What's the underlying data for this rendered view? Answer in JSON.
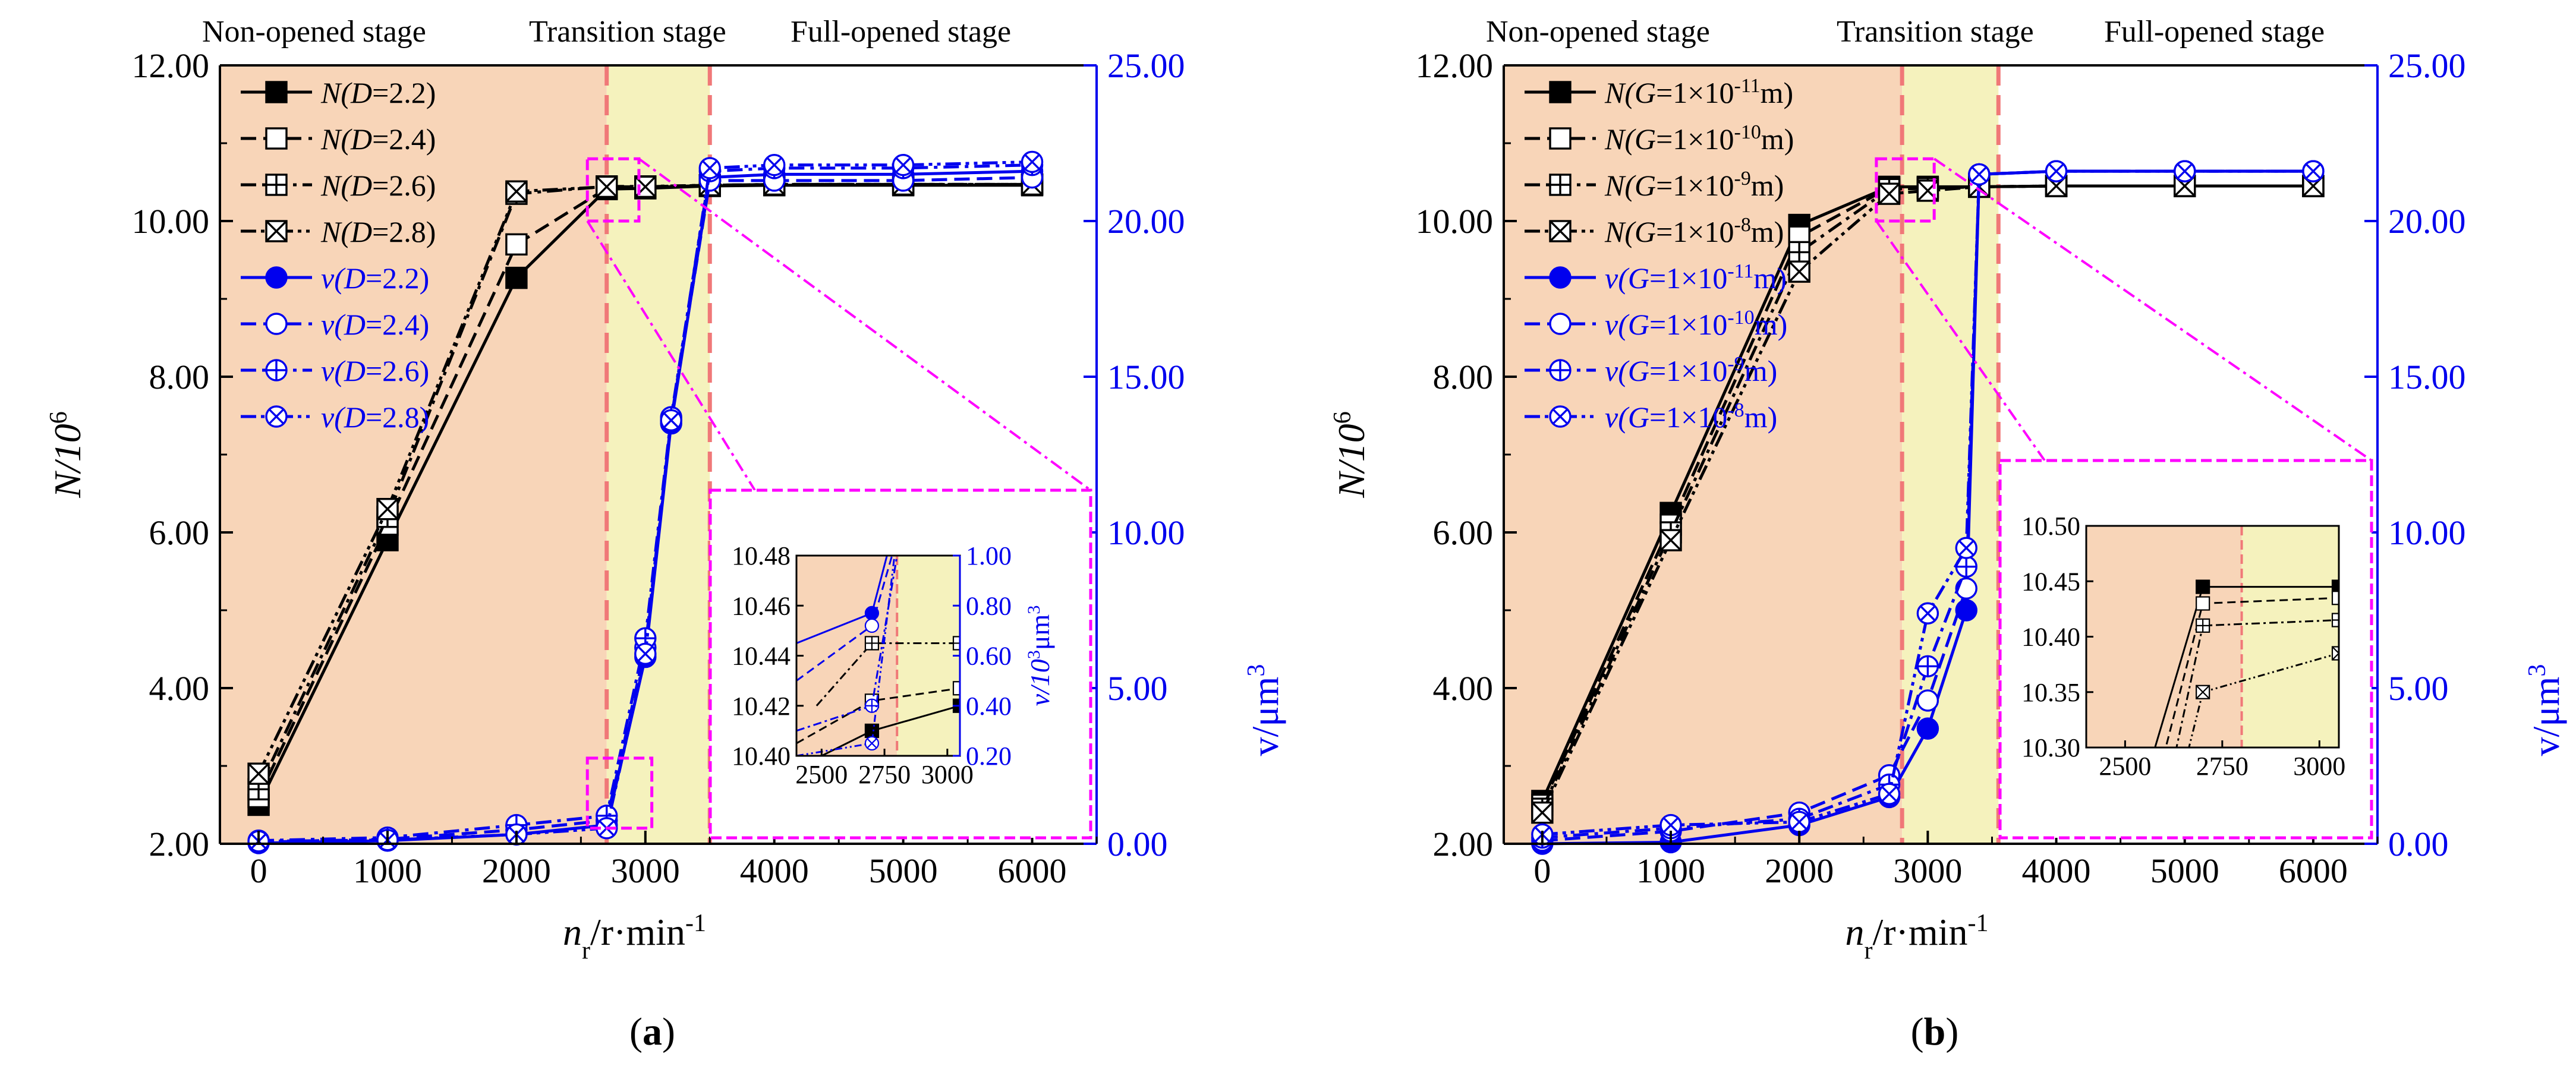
{
  "figure": {
    "panels": [
      {
        "label": "(a)",
        "label_open": "(",
        "label_letter": "a",
        "label_close": ")",
        "stages": [
          "Non-opened stage",
          "Transition stage",
          "Full-opened stage"
        ],
        "y_ticks": [
          "2.00",
          "4.00",
          "6.00",
          "8.00",
          "10.00",
          "12.00"
        ],
        "y2_ticks": [
          "0.00",
          "5.00",
          "10.00",
          "15.00",
          "20.00",
          "25.00"
        ],
        "x_ticks": [
          "0",
          "1000",
          "2000",
          "3000",
          "4000",
          "5000",
          "6000"
        ],
        "inset_x_ticks": [
          "2500",
          "2750",
          "3000"
        ],
        "inset_y_ticks": [
          "10.40",
          "10.42",
          "10.44",
          "10.46",
          "10.48"
        ],
        "inset_y2_ticks": [
          "0.20",
          "0.40",
          "0.60",
          "0.80",
          "1.00"
        ],
        "legend": [
          {
            "pre": "N(",
            "var": "D",
            "sup": "",
            "post": "=2.2)"
          },
          {
            "pre": "N(",
            "var": "D",
            "sup": "",
            "post": "=2.4)"
          },
          {
            "pre": "N(",
            "var": "D",
            "sup": "",
            "post": "=2.6)"
          },
          {
            "pre": "N(",
            "var": "D",
            "sup": "",
            "post": "=2.8)"
          },
          {
            "pre": "v(",
            "var": "D",
            "sup": "",
            "post": "=2.2)"
          },
          {
            "pre": "v(",
            "var": "D",
            "sup": "",
            "post": "=2.4)"
          },
          {
            "pre": "v(",
            "var": "D",
            "sup": "",
            "post": "=2.6)"
          },
          {
            "pre": "v(",
            "var": "D",
            "sup": "",
            "post": "=2.8)"
          }
        ]
      },
      {
        "label": "(b)",
        "label_open": "(",
        "label_letter": "b",
        "label_close": ")",
        "stages": [
          "Non-opened stage",
          "Transition stage",
          "Full-opened stage"
        ],
        "y_ticks": [
          "2.00",
          "4.00",
          "6.00",
          "8.00",
          "10.00",
          "12.00"
        ],
        "y2_ticks": [
          "0.00",
          "5.00",
          "10.00",
          "15.00",
          "20.00",
          "25.00"
        ],
        "x_ticks": [
          "0",
          "1000",
          "2000",
          "3000",
          "4000",
          "5000",
          "6000"
        ],
        "inset_x_ticks": [
          "2500",
          "2750",
          "3000"
        ],
        "inset_y_ticks": [
          "10.30",
          "10.35",
          "10.40",
          "10.45",
          "10.50"
        ],
        "legend": [
          {
            "pre": "N(",
            "var": "G",
            "sup": "-11",
            "post": "=1×10",
            "tail": "m)"
          },
          {
            "pre": "N(",
            "var": "G",
            "sup": "-10",
            "post": "=1×10",
            "tail": "m)"
          },
          {
            "pre": "N(",
            "var": "G",
            "sup": "-9",
            "post": "=1×10",
            "tail": "m)"
          },
          {
            "pre": "N(",
            "var": "G",
            "sup": "-8",
            "post": "=1×10",
            "tail": "m)"
          },
          {
            "pre": "v(",
            "var": "G",
            "sup": "-11",
            "post": "=1×10",
            "tail": "m)"
          },
          {
            "pre": "v(",
            "var": "G",
            "sup": "-10",
            "post": "=1×10",
            "tail": "m)"
          },
          {
            "pre": "v(",
            "var": "G",
            "sup": "-9",
            "post": "=1×10",
            "tail": "m)"
          },
          {
            "pre": "v(",
            "var": "G",
            "sup": "-8",
            "post": "=1×10",
            "tail": "m)"
          }
        ]
      }
    ],
    "y_label": "N/10",
    "y_label_sup": "6",
    "y2_label": "v/μm",
    "y2_label_sup": "3",
    "x_label_n": "n",
    "x_label_sub": "r",
    "x_label_unit": "/r·min",
    "x_label_sup": "-1",
    "inset_y2_label": "v/10",
    "inset_y2_sup": "3",
    "inset_y2_unit": "μm",
    "inset_y2_unit_sup": "3"
  },
  "colors": {
    "black": "#000000",
    "blue": "#0000ee",
    "magenta": "#ff00ff",
    "stage1": "#f8d5b8",
    "stage2": "#f5f2bd",
    "stage_line": "#f07878"
  },
  "chart_data": [
    {
      "type": "line",
      "title": "(a)",
      "xlabel": "n_r/r·min^-1",
      "ylabel": "N/10^6",
      "y2label": "v/μm^3",
      "xlim": [
        -300,
        6500
      ],
      "ylim": [
        2,
        12
      ],
      "y2lim": [
        0,
        25
      ],
      "stage_bounds": [
        2700,
        3500
      ],
      "series": [
        {
          "name": "N(D=2.2)",
          "axis": "left",
          "color": "#000000",
          "dash": "solid",
          "marker": "filled_square",
          "x": [
            0,
            1000,
            2000,
            2700,
            3000,
            3500,
            4000,
            5000,
            6000
          ],
          "values": [
            2.5,
            5.9,
            9.27,
            10.41,
            10.42,
            10.45,
            10.46,
            10.46,
            10.46
          ]
        },
        {
          "name": "N(D=2.4)",
          "axis": "left",
          "color": "#000000",
          "dash": "dash",
          "marker": "open_square",
          "x": [
            0,
            1000,
            2000,
            2700,
            3000,
            3500,
            4000,
            5000,
            6000
          ],
          "values": [
            2.6,
            6.1,
            9.7,
            10.42,
            10.43,
            10.46,
            10.47,
            10.47,
            10.47
          ]
        },
        {
          "name": "N(D=2.6)",
          "axis": "left",
          "color": "#000000",
          "dash": "dashdot",
          "marker": "plus_square",
          "x": [
            0,
            1000,
            2000,
            2700,
            3000,
            3500,
            4000,
            5000,
            6000
          ],
          "values": [
            2.7,
            6.2,
            10.35,
            10.445,
            10.445,
            10.46,
            10.47,
            10.47,
            10.47
          ]
        },
        {
          "name": "N(D=2.8)",
          "axis": "left",
          "color": "#000000",
          "dash": "dashdotdot",
          "marker": "x_square",
          "x": [
            0,
            1000,
            2000,
            2700,
            3000,
            3500,
            4000,
            5000,
            6000
          ],
          "values": [
            2.9,
            6.3,
            10.38,
            10.44,
            10.44,
            10.46,
            10.47,
            10.47,
            10.47
          ]
        },
        {
          "name": "v(D=2.2)",
          "axis": "right",
          "color": "#0000ee",
          "dash": "solid",
          "marker": "filled_circle",
          "x": [
            0,
            1000,
            2000,
            2700,
            3000,
            3200,
            3500,
            4000,
            5000,
            6000
          ],
          "values": [
            0.02,
            0.1,
            0.3,
            0.6,
            6.0,
            13.5,
            21.4,
            21.5,
            21.5,
            21.6
          ]
        },
        {
          "name": "v(D=2.4)",
          "axis": "right",
          "color": "#0000ee",
          "dash": "dash",
          "marker": "open_circle",
          "x": [
            0,
            1000,
            2000,
            2700,
            3000,
            3200,
            3500,
            4000,
            5000,
            6000
          ],
          "values": [
            0.05,
            0.15,
            0.45,
            0.75,
            6.3,
            13.6,
            21.3,
            21.3,
            21.3,
            21.4
          ]
        },
        {
          "name": "v(D=2.6)",
          "axis": "right",
          "color": "#0000ee",
          "dash": "dashdot",
          "marker": "plus_circle",
          "x": [
            0,
            1000,
            2000,
            2700,
            3000,
            3200,
            3500,
            4000,
            5000,
            6000
          ],
          "values": [
            0.1,
            0.2,
            0.6,
            0.9,
            6.6,
            13.7,
            21.6,
            21.7,
            21.7,
            21.8
          ]
        },
        {
          "name": "v(D=2.8)",
          "axis": "right",
          "color": "#0000ee",
          "dash": "dashdotdot",
          "marker": "x_circle",
          "x": [
            0,
            1000,
            2000,
            2700,
            3000,
            3200,
            3500,
            4000,
            5000,
            6000
          ],
          "values": [
            0.08,
            0.12,
            0.3,
            0.5,
            6.1,
            13.6,
            21.7,
            21.8,
            21.8,
            21.9
          ]
        }
      ],
      "zoom_boxes": [
        {
          "x": [
            2550,
            2950
          ],
          "y": [
            10.0,
            10.8
          ]
        },
        {
          "x": [
            2550,
            3050
          ],
          "y": [
            2.2,
            3.1
          ]
        }
      ],
      "inset": {
        "xlim": [
          2400,
          3050
        ],
        "ylim": [
          10.4,
          10.48
        ],
        "y2lim": [
          0.2,
          1.0
        ],
        "stage_bound": 2800,
        "series": [
          {
            "name": "N(D=2.2)",
            "axis": "left",
            "color": "#000000",
            "dash": "solid",
            "marker": "filled_square",
            "x": [
              2400,
              2700,
              3050
            ],
            "values": [
              10.395,
              10.41,
              10.42
            ]
          },
          {
            "name": "N(D=2.4)",
            "axis": "left",
            "color": "#000000",
            "dash": "dash",
            "marker": "open_square",
            "x": [
              2400,
              2700,
              3050
            ],
            "values": [
              10.405,
              10.422,
              10.427
            ]
          },
          {
            "name": "N(D=2.6)",
            "axis": "left",
            "color": "#000000",
            "dash": "dashdot",
            "marker": "plus_square",
            "x": [
              2480,
              2700,
              3050
            ],
            "values": [
              10.42,
              10.445,
              10.445
            ]
          },
          {
            "name": "v(D=2.2)",
            "axis": "right",
            "color": "#0000ee",
            "dash": "solid",
            "marker": "filled_circle",
            "x": [
              2400,
              2700,
              2760
            ],
            "values": [
              0.65,
              0.77,
              1.0
            ]
          },
          {
            "name": "v(D=2.4)",
            "axis": "right",
            "color": "#0000ee",
            "dash": "dash",
            "marker": "open_circle",
            "x": [
              2400,
              2700,
              2780
            ],
            "values": [
              0.5,
              0.72,
              1.0
            ]
          },
          {
            "name": "v(D=2.6)",
            "axis": "right",
            "color": "#0000ee",
            "dash": "dashdot",
            "marker": "plus_circle",
            "x": [
              2400,
              2700,
              2800
            ],
            "values": [
              0.3,
              0.4,
              1.0
            ]
          },
          {
            "name": "v(D=2.8)",
            "axis": "right",
            "color": "#0000ee",
            "dash": "dashdotdot",
            "marker": "x_circle",
            "x": [
              2400,
              2700,
              2790
            ],
            "values": [
              0.2,
              0.25,
              1.0
            ]
          }
        ]
      }
    },
    {
      "type": "line",
      "title": "(b)",
      "xlabel": "n_r/r·min^-1",
      "ylabel": "N/10^6",
      "y2label": "v/μm^3",
      "xlim": [
        -300,
        6500
      ],
      "ylim": [
        2,
        12
      ],
      "y2lim": [
        0,
        25
      ],
      "stage_bounds": [
        2800,
        3550
      ],
      "series": [
        {
          "name": "N(G=1×10^-11m)",
          "axis": "left",
          "color": "#000000",
          "dash": "solid",
          "marker": "filled_square",
          "x": [
            0,
            1000,
            2000,
            2700,
            3000,
            3400,
            4000,
            5000,
            6000
          ],
          "values": [
            2.55,
            6.25,
            9.95,
            10.44,
            10.44,
            10.44,
            10.45,
            10.45,
            10.45
          ]
        },
        {
          "name": "N(G=1×10^-10m)",
          "axis": "left",
          "color": "#000000",
          "dash": "dash",
          "marker": "open_square",
          "x": [
            0,
            1000,
            2000,
            2700,
            3000,
            3400,
            4000,
            5000,
            6000
          ],
          "values": [
            2.5,
            6.1,
            9.8,
            10.43,
            10.43,
            10.44,
            10.45,
            10.45,
            10.45
          ]
        },
        {
          "name": "N(G=1×10^-9m)",
          "axis": "left",
          "color": "#000000",
          "dash": "dashdot",
          "marker": "plus_square",
          "x": [
            0,
            1000,
            2000,
            2700,
            3000,
            3400,
            4000,
            5000,
            6000
          ],
          "values": [
            2.45,
            6.0,
            9.6,
            10.41,
            10.42,
            10.44,
            10.45,
            10.45,
            10.45
          ]
        },
        {
          "name": "N(G=1×10^-8m)",
          "axis": "left",
          "color": "#000000",
          "dash": "dashdotdot",
          "marker": "x_square",
          "x": [
            0,
            1000,
            2000,
            2700,
            3000,
            3400,
            4000,
            5000,
            6000
          ],
          "values": [
            2.4,
            5.9,
            9.35,
            10.35,
            10.39,
            10.44,
            10.45,
            10.45,
            10.45
          ]
        },
        {
          "name": "v(G=1×10^-11m)",
          "axis": "right",
          "color": "#0000ee",
          "dash": "solid",
          "marker": "filled_circle",
          "x": [
            0,
            1000,
            2000,
            2700,
            3000,
            3300,
            3400,
            4000,
            5000,
            6000
          ],
          "values": [
            0.0,
            0.05,
            0.6,
            1.5,
            3.7,
            7.5,
            21.5,
            21.6,
            21.6,
            21.6
          ]
        },
        {
          "name": "v(G=1×10^-10m)",
          "axis": "right",
          "color": "#0000ee",
          "dash": "dash",
          "marker": "open_circle",
          "x": [
            0,
            1000,
            2000,
            2700,
            3000,
            3300,
            3400,
            4000,
            5000,
            6000
          ],
          "values": [
            0.1,
            0.4,
            1.0,
            2.2,
            4.6,
            8.2,
            21.5,
            21.6,
            21.6,
            21.6
          ]
        },
        {
          "name": "v(G=1×10^-9m)",
          "axis": "right",
          "color": "#0000ee",
          "dash": "dashdot",
          "marker": "plus_circle",
          "x": [
            0,
            1000,
            2000,
            2700,
            3000,
            3300,
            3400,
            4000,
            5000,
            6000
          ],
          "values": [
            0.2,
            0.5,
            0.8,
            1.9,
            5.7,
            8.9,
            21.5,
            21.6,
            21.6,
            21.6
          ]
        },
        {
          "name": "v(G=1×10^-8m)",
          "axis": "right",
          "color": "#0000ee",
          "dash": "dashdotdot",
          "marker": "x_circle",
          "x": [
            0,
            1000,
            2000,
            2700,
            3000,
            3300,
            3400,
            4000,
            5000,
            6000
          ],
          "values": [
            0.3,
            0.6,
            0.7,
            1.6,
            7.4,
            9.5,
            21.5,
            21.6,
            21.6,
            21.6
          ]
        }
      ],
      "zoom_boxes": [
        {
          "x": [
            2600,
            3050
          ],
          "y": [
            10.0,
            10.8
          ]
        }
      ],
      "inset": {
        "xlim": [
          2400,
          3050
        ],
        "ylim": [
          10.3,
          10.5
        ],
        "stage_bound": 2800,
        "series": [
          {
            "name": "N(G=1×10^-11m)",
            "axis": "left",
            "color": "#000000",
            "dash": "solid",
            "marker": "filled_square",
            "x": [
              2560,
              2700,
              3050
            ],
            "values": [
              10.28,
              10.445,
              10.445
            ]
          },
          {
            "name": "N(G=1×10^-10m)",
            "axis": "left",
            "color": "#000000",
            "dash": "dash",
            "marker": "open_square",
            "x": [
              2590,
              2700,
              3050
            ],
            "values": [
              10.28,
              10.43,
              10.435
            ]
          },
          {
            "name": "N(G=1×10^-9m)",
            "axis": "left",
            "color": "#000000",
            "dash": "dashdot",
            "marker": "plus_square",
            "x": [
              2620,
              2700,
              3050
            ],
            "values": [
              10.28,
              10.41,
              10.415
            ]
          },
          {
            "name": "N(G=1×10^-8m)",
            "axis": "left",
            "color": "#000000",
            "dash": "dashdotdot",
            "marker": "x_square",
            "x": [
              2650,
              2700,
              3050
            ],
            "values": [
              10.28,
              10.35,
              10.385
            ]
          }
        ]
      }
    }
  ]
}
